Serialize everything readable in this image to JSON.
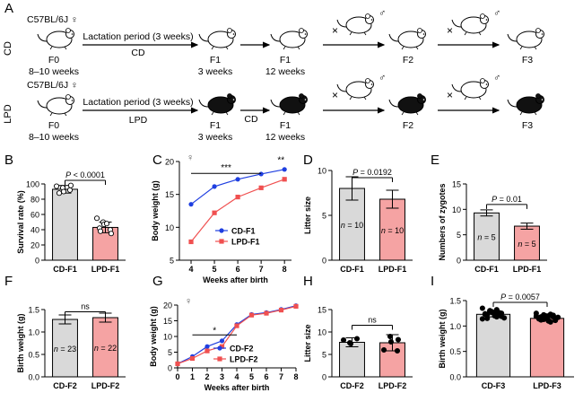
{
  "schema": {
    "panel_A": {
      "letter": "A",
      "cd_label": "CD",
      "lpd_label": "LPD",
      "strain": "C57BL/6J ♀",
      "lactation": "Lactation period (3 weeks)",
      "cd_diet": "CD",
      "lpd_diet": "LPD",
      "f0": "F0",
      "f0_age": "8–10 weeks",
      "f1": "F1",
      "f1_age1": "3 weeks",
      "f1_age2": "12 weeks",
      "f2": "F2",
      "f3": "F3",
      "cd_mid": "CD",
      "cross": "×",
      "male": "♂",
      "female_symbol": "♀"
    }
  },
  "chart_data": [
    {
      "panel": "B",
      "type": "bar",
      "categories": [
        "CD-F1",
        "LPD-F1"
      ],
      "values": [
        93,
        43
      ],
      "errors": [
        5,
        7
      ],
      "points": [
        [
          97,
          95,
          90,
          92,
          98,
          88
        ],
        [
          55,
          50,
          47,
          40,
          35,
          42,
          38,
          48
        ]
      ],
      "colors": [
        "#d9d9d9",
        "#f5a3a3"
      ],
      "ylabel": "Survival rate (%)",
      "ylim": [
        0,
        100
      ],
      "yticks": [
        0,
        20,
        40,
        60,
        80,
        100
      ],
      "annotation": "P < 0.0001"
    },
    {
      "panel": "C",
      "type": "line",
      "title": "♀",
      "xlabel": "Weeks after birth",
      "ylabel": "Body weight (g)",
      "x": [
        4,
        5,
        6,
        7,
        8
      ],
      "xlim": [
        3.5,
        8.3
      ],
      "ylim": [
        5,
        20
      ],
      "yticks": [
        5,
        10,
        15,
        20
      ],
      "series": [
        {
          "name": "CD-F1",
          "color": "#1f3fe0",
          "marker": "circle",
          "values": [
            13.5,
            16.2,
            17.3,
            18.1,
            18.8
          ]
        },
        {
          "name": "LPD-F1",
          "color": "#f05050",
          "marker": "square",
          "values": [
            7.8,
            12.2,
            14.6,
            16.0,
            17.3
          ]
        }
      ],
      "annotations": [
        "***",
        "**"
      ]
    },
    {
      "panel": "D",
      "type": "bar",
      "categories": [
        "CD-F1",
        "LPD-F1"
      ],
      "values": [
        8.0,
        6.8
      ],
      "errors": [
        1.3,
        1.0
      ],
      "colors": [
        "#d9d9d9",
        "#f5a3a3"
      ],
      "ylabel": "Litter size",
      "ylim": [
        0,
        10
      ],
      "yticks": [
        0,
        5,
        10
      ],
      "n_labels": [
        "n = 10",
        "n = 10"
      ],
      "annotation": "P = 0.0192"
    },
    {
      "panel": "E",
      "type": "bar",
      "categories": [
        "CD-F1",
        "LPD-F1"
      ],
      "values": [
        9.3,
        6.7
      ],
      "errors": [
        0.6,
        0.6
      ],
      "colors": [
        "#d9d9d9",
        "#f5a3a3"
      ],
      "ylabel": "Numbers of zygotes",
      "ylim": [
        0,
        15
      ],
      "yticks": [
        0,
        5,
        10,
        15
      ],
      "n_labels": [
        "n = 5",
        "n = 5"
      ],
      "annotation": "P = 0.01"
    },
    {
      "panel": "F",
      "type": "bar",
      "categories": [
        "CD-F2",
        "LPD-F2"
      ],
      "values": [
        1.28,
        1.32
      ],
      "errors": [
        0.1,
        0.1
      ],
      "colors": [
        "#d9d9d9",
        "#f5a3a3"
      ],
      "ylabel": "Birth weight (g)",
      "ylim": [
        0,
        1.5
      ],
      "yticks": [
        0.0,
        0.5,
        1.0,
        1.5
      ],
      "n_labels": [
        "n = 23",
        "n = 22"
      ],
      "annotation": "ns"
    },
    {
      "panel": "G",
      "type": "line",
      "title": "♀",
      "xlabel": "Weeks after birth",
      "ylabel": "Body weight (g)",
      "x": [
        0,
        1,
        2,
        3,
        4,
        5,
        6,
        7,
        8
      ],
      "xlim": [
        0,
        8
      ],
      "xticks": [
        0,
        1,
        2,
        3,
        4,
        5,
        6,
        7,
        8
      ],
      "ylim": [
        0,
        20
      ],
      "yticks": [
        0,
        5,
        10,
        15,
        20
      ],
      "series": [
        {
          "name": "CD-F2",
          "color": "#1f3fe0",
          "marker": "circle",
          "values": [
            1.3,
            3.6,
            6.8,
            8.6,
            13.8,
            17.0,
            17.6,
            18.6,
            19.8
          ]
        },
        {
          "name": "LPD-F2",
          "color": "#f05050",
          "marker": "square",
          "values": [
            1.3,
            3.0,
            5.4,
            6.8,
            13.4,
            16.8,
            17.4,
            18.4,
            19.6
          ]
        }
      ],
      "annotations": [
        "*"
      ]
    },
    {
      "panel": "H",
      "type": "bar",
      "categories": [
        "CD-F2",
        "LPD-F2"
      ],
      "values": [
        7.7,
        7.6
      ],
      "errors": [
        1.0,
        1.8
      ],
      "points": [
        [
          8.2,
          7.6,
          7.4,
          8.5
        ],
        [
          6.0,
          9.0,
          7.8,
          5.8,
          8.3
        ]
      ],
      "colors": [
        "#d9d9d9",
        "#f5a3a3"
      ],
      "ylabel": "Litter size",
      "ylim": [
        0,
        15
      ],
      "yticks": [
        0,
        5,
        10,
        15
      ],
      "annotation": "ns"
    },
    {
      "panel": "I",
      "type": "bar",
      "categories": [
        "CD-F3",
        "LPD-F3"
      ],
      "values": [
        1.23,
        1.15
      ],
      "errors": [
        0.05,
        0.05
      ],
      "points": [
        [
          1.35,
          1.3,
          1.28,
          1.26,
          1.25,
          1.24,
          1.22,
          1.2,
          1.18,
          1.16,
          1.14,
          1.3,
          1.27,
          1.21,
          1.19,
          1.23,
          1.15,
          1.25,
          1.32
        ],
        [
          1.25,
          1.22,
          1.2,
          1.18,
          1.16,
          1.14,
          1.12,
          1.1,
          1.08,
          1.17,
          1.19,
          1.13,
          1.15,
          1.21,
          1.11,
          1.16,
          1.18,
          1.2,
          1.23
        ]
      ],
      "colors": [
        "#d9d9d9",
        "#f5a3a3"
      ],
      "ylabel": "Birth weight (g)",
      "ylim": [
        0,
        1.5
      ],
      "yticks": [
        0.0,
        0.5,
        1.0,
        1.5
      ],
      "annotation": "P = 0.0057"
    }
  ]
}
